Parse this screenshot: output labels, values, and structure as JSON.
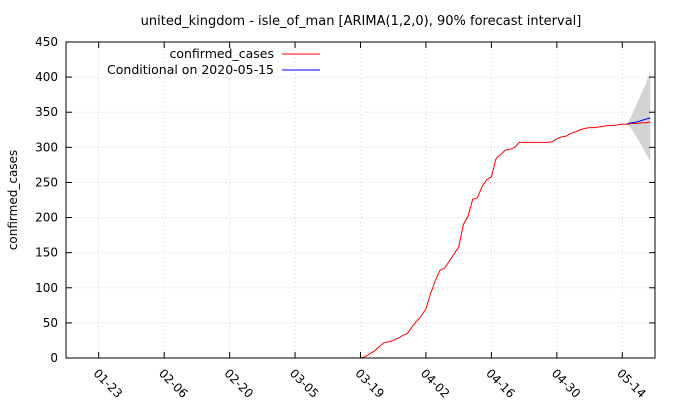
{
  "chart_data": {
    "type": "line",
    "title": "united_kingdom - isle_of_man [ARIMA(1,2,0), 90% forecast interval]",
    "ylabel": "confirmed_cases",
    "xlabel": "",
    "ylim": [
      0,
      450
    ],
    "yticks": [
      0,
      50,
      100,
      150,
      200,
      250,
      300,
      350,
      400,
      450
    ],
    "xlim": [
      "2020-01-16",
      "2020-05-21"
    ],
    "xticks": [
      {
        "date": "2020-01-23",
        "label": "01-23"
      },
      {
        "date": "2020-02-06",
        "label": "02-06"
      },
      {
        "date": "2020-02-20",
        "label": "02-20"
      },
      {
        "date": "2020-03-05",
        "label": "03-05"
      },
      {
        "date": "2020-03-19",
        "label": "03-19"
      },
      {
        "date": "2020-04-02",
        "label": "04-02"
      },
      {
        "date": "2020-04-16",
        "label": "04-16"
      },
      {
        "date": "2020-04-30",
        "label": "04-30"
      },
      {
        "date": "2020-05-14",
        "label": "05-14"
      }
    ],
    "grid": true,
    "legend_position": "top-left",
    "colors": {
      "confirmed_cases": "#ff0000",
      "forecast": "#0000ff",
      "interval": "#d3d3d3",
      "grid": "#c8c8c8",
      "axis": "#000000"
    },
    "series": [
      {
        "name": "confirmed_cases",
        "points": [
          [
            "2020-01-16",
            0
          ],
          [
            "2020-03-19",
            0
          ],
          [
            "2020-03-20",
            2
          ],
          [
            "2020-03-21",
            6
          ],
          [
            "2020-03-22",
            10
          ],
          [
            "2020-03-23",
            16
          ],
          [
            "2020-03-24",
            22
          ],
          [
            "2020-03-25",
            23
          ],
          [
            "2020-03-26",
            25
          ],
          [
            "2020-03-27",
            28
          ],
          [
            "2020-03-28",
            32
          ],
          [
            "2020-03-29",
            35
          ],
          [
            "2020-03-30",
            44
          ],
          [
            "2020-03-31",
            52
          ],
          [
            "2020-04-01",
            60
          ],
          [
            "2020-04-02",
            70
          ],
          [
            "2020-04-03",
            92
          ],
          [
            "2020-04-04",
            110
          ],
          [
            "2020-04-05",
            125
          ],
          [
            "2020-04-06",
            128
          ],
          [
            "2020-04-07",
            138
          ],
          [
            "2020-04-08",
            148
          ],
          [
            "2020-04-09",
            158
          ],
          [
            "2020-04-10",
            190
          ],
          [
            "2020-04-11",
            202
          ],
          [
            "2020-04-12",
            226
          ],
          [
            "2020-04-13",
            228
          ],
          [
            "2020-04-14",
            244
          ],
          [
            "2020-04-15",
            254
          ],
          [
            "2020-04-16",
            258
          ],
          [
            "2020-04-17",
            284
          ],
          [
            "2020-04-18",
            290
          ],
          [
            "2020-04-19",
            296
          ],
          [
            "2020-04-20",
            297
          ],
          [
            "2020-04-21",
            300
          ],
          [
            "2020-04-22",
            307
          ],
          [
            "2020-04-23",
            307
          ],
          [
            "2020-04-24",
            307
          ],
          [
            "2020-04-25",
            307
          ],
          [
            "2020-04-26",
            307
          ],
          [
            "2020-04-27",
            307
          ],
          [
            "2020-04-28",
            307
          ],
          [
            "2020-04-29",
            308
          ],
          [
            "2020-04-30",
            312
          ],
          [
            "2020-05-01",
            315
          ],
          [
            "2020-05-02",
            316
          ],
          [
            "2020-05-03",
            320
          ],
          [
            "2020-05-04",
            322
          ],
          [
            "2020-05-05",
            325
          ],
          [
            "2020-05-06",
            327
          ],
          [
            "2020-05-07",
            328
          ],
          [
            "2020-05-08",
            328
          ],
          [
            "2020-05-09",
            329
          ],
          [
            "2020-05-10",
            330
          ],
          [
            "2020-05-11",
            331
          ],
          [
            "2020-05-12",
            331
          ],
          [
            "2020-05-13",
            332
          ],
          [
            "2020-05-14",
            333
          ],
          [
            "2020-05-15",
            333
          ],
          [
            "2020-05-16",
            334
          ],
          [
            "2020-05-17",
            334
          ],
          [
            "2020-05-18",
            335
          ],
          [
            "2020-05-19",
            335
          ],
          [
            "2020-05-20",
            336
          ]
        ]
      },
      {
        "name": "Conditional on 2020-05-15",
        "points": [
          [
            "2020-05-15",
            333
          ],
          [
            "2020-05-16",
            335
          ],
          [
            "2020-05-17",
            336
          ],
          [
            "2020-05-18",
            338
          ],
          [
            "2020-05-19",
            340
          ],
          [
            "2020-05-20",
            342
          ]
        ],
        "interval": {
          "level": "90%",
          "lower": [
            333,
            326,
            315,
            304,
            292,
            280
          ],
          "upper": [
            333,
            345,
            360,
            375,
            390,
            408
          ]
        }
      }
    ]
  }
}
